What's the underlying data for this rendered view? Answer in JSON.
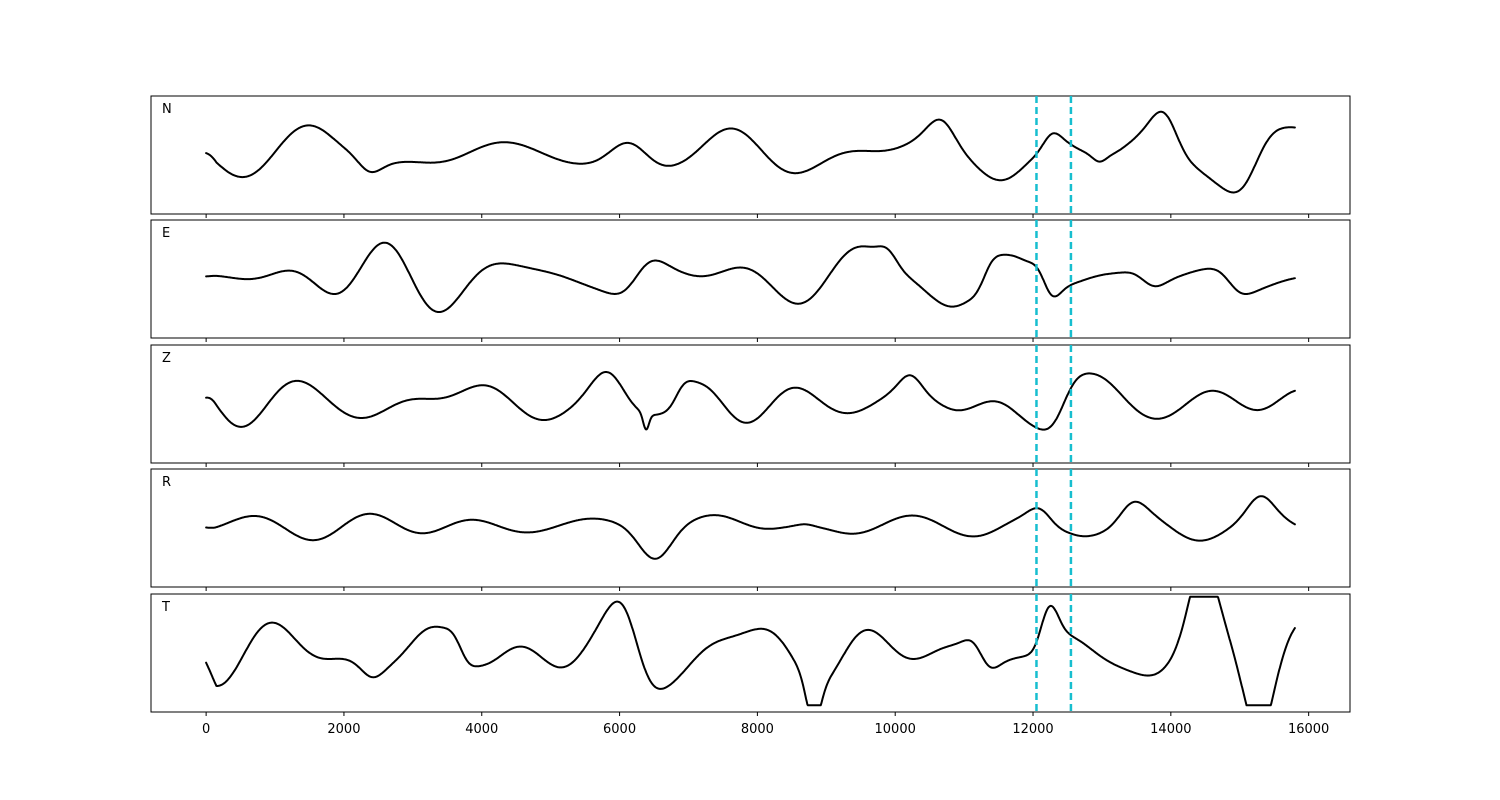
{
  "chart_data": {
    "type": "line",
    "title": "",
    "xlabel": "",
    "ylabel": "",
    "xlim": [
      -800,
      16600
    ],
    "x_ticks": [
      {
        "value": 0,
        "label": "0"
      },
      {
        "value": 2000,
        "label": "2000"
      },
      {
        "value": 4000,
        "label": "4000"
      },
      {
        "value": 6000,
        "label": "6000"
      },
      {
        "value": 8000,
        "label": "8000"
      },
      {
        "value": 10000,
        "label": "10000"
      },
      {
        "value": 12000,
        "label": "12000"
      },
      {
        "value": 14000,
        "label": "14000"
      },
      {
        "value": 16000,
        "label": "16000"
      }
    ],
    "x_range": [
      0,
      15800
    ],
    "vertical_markers": [
      12050,
      12550
    ],
    "marker_color": "#17becf",
    "trace_color": "#000000",
    "grid": false,
    "legend": false,
    "y_ticks": false,
    "panels": [
      {
        "label": "N",
        "seed": 11,
        "events": [
          {
            "x": 2350,
            "amp": 0.55,
            "width": 250
          },
          {
            "x": 6200,
            "amp": 0.6,
            "width": 500
          },
          {
            "x": 10700,
            "amp": 0.6,
            "width": 300
          },
          {
            "x": 12250,
            "amp": 0.8,
            "width": 200
          },
          {
            "x": 12950,
            "amp": 0.9,
            "width": 150
          },
          {
            "x": 13950,
            "amp": 0.7,
            "width": 300
          },
          {
            "x": 15200,
            "amp": 0.55,
            "width": 400
          }
        ]
      },
      {
        "label": "E",
        "seed": 23,
        "events": [
          {
            "x": 6300,
            "amp": 0.55,
            "width": 400
          },
          {
            "x": 9950,
            "amp": 0.6,
            "width": 200
          },
          {
            "x": 11300,
            "amp": 0.5,
            "width": 200
          },
          {
            "x": 12200,
            "amp": 0.9,
            "width": 200
          },
          {
            "x": 13700,
            "amp": 0.7,
            "width": 300
          },
          {
            "x": 14900,
            "amp": 0.7,
            "width": 300
          }
        ]
      },
      {
        "label": "Z",
        "seed": 37,
        "events": [
          {
            "x": 5900,
            "amp": 0.5,
            "width": 400
          },
          {
            "x": 6380,
            "amp": 1.0,
            "width": 60
          },
          {
            "x": 6850,
            "amp": 0.65,
            "width": 200
          },
          {
            "x": 10250,
            "amp": 0.4,
            "width": 250
          },
          {
            "x": 12400,
            "amp": 0.4,
            "width": 300
          }
        ]
      },
      {
        "label": "R",
        "seed": 53,
        "events": [
          {
            "x": 6550,
            "amp": 0.8,
            "width": 400
          },
          {
            "x": 8700,
            "amp": 0.6,
            "width": 200
          },
          {
            "x": 12150,
            "amp": 0.6,
            "width": 250
          },
          {
            "x": 13400,
            "amp": 0.6,
            "width": 300
          },
          {
            "x": 15300,
            "amp": 0.75,
            "width": 300
          }
        ]
      },
      {
        "label": "T",
        "seed": 71,
        "events": [
          {
            "x": 2350,
            "amp": 0.6,
            "width": 250
          },
          {
            "x": 3700,
            "amp": 0.55,
            "width": 200
          },
          {
            "x": 6200,
            "amp": 0.6,
            "width": 400
          },
          {
            "x": 8800,
            "amp": 0.8,
            "width": 150
          },
          {
            "x": 11250,
            "amp": 0.55,
            "width": 250
          },
          {
            "x": 12200,
            "amp": 0.85,
            "width": 200
          },
          {
            "x": 14400,
            "amp": 0.7,
            "width": 300
          },
          {
            "x": 15300,
            "amp": 0.6,
            "width": 300
          }
        ]
      }
    ]
  }
}
